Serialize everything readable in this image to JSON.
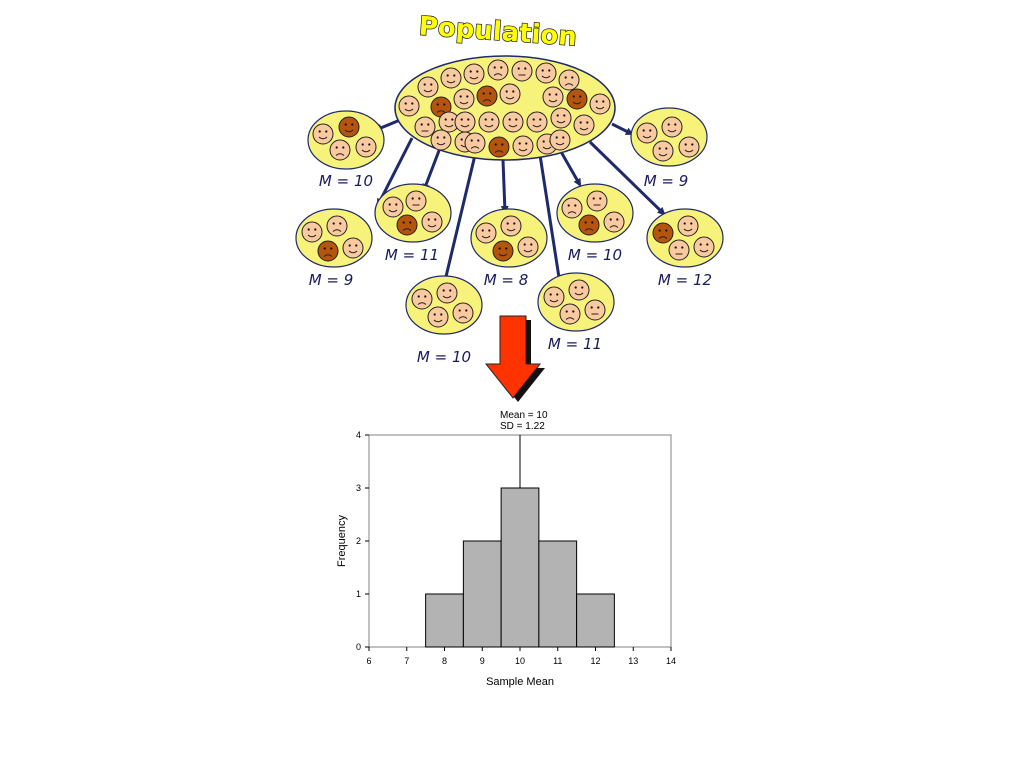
{
  "diagram": {
    "title": "Population",
    "sample_labels": [
      "M = 10",
      "M = 9",
      "M = 11",
      "M = 8",
      "M = 10",
      "M = 9",
      "M = 12",
      "M = 10",
      "M = 11"
    ],
    "colors": {
      "face_light": "#f9c9a0",
      "face_dark": "#b5540f",
      "ellipse_fill": "#f7f27a",
      "arrow": "#1f2a6b",
      "down_arrow": "#ff3300"
    }
  },
  "chart_data": {
    "type": "bar",
    "annotation": [
      "Mean = 10",
      "SD = 1.22"
    ],
    "mean_line_x": 10,
    "bins": [
      {
        "from": 7.5,
        "to": 8.5,
        "value": 1
      },
      {
        "from": 8.5,
        "to": 9.5,
        "value": 2
      },
      {
        "from": 9.5,
        "to": 10.5,
        "value": 3
      },
      {
        "from": 10.5,
        "to": 11.5,
        "value": 2
      },
      {
        "from": 11.5,
        "to": 12.5,
        "value": 1
      }
    ],
    "xlabel": "Sample Mean",
    "ylabel": "Frequency",
    "xlim": [
      6,
      14
    ],
    "ylim": [
      0,
      4
    ],
    "xticks": [
      "6",
      "7",
      "8",
      "9",
      "10",
      "11",
      "12",
      "13",
      "14"
    ],
    "yticks": [
      "0",
      "1",
      "2",
      "3",
      "4"
    ],
    "grid": false
  }
}
